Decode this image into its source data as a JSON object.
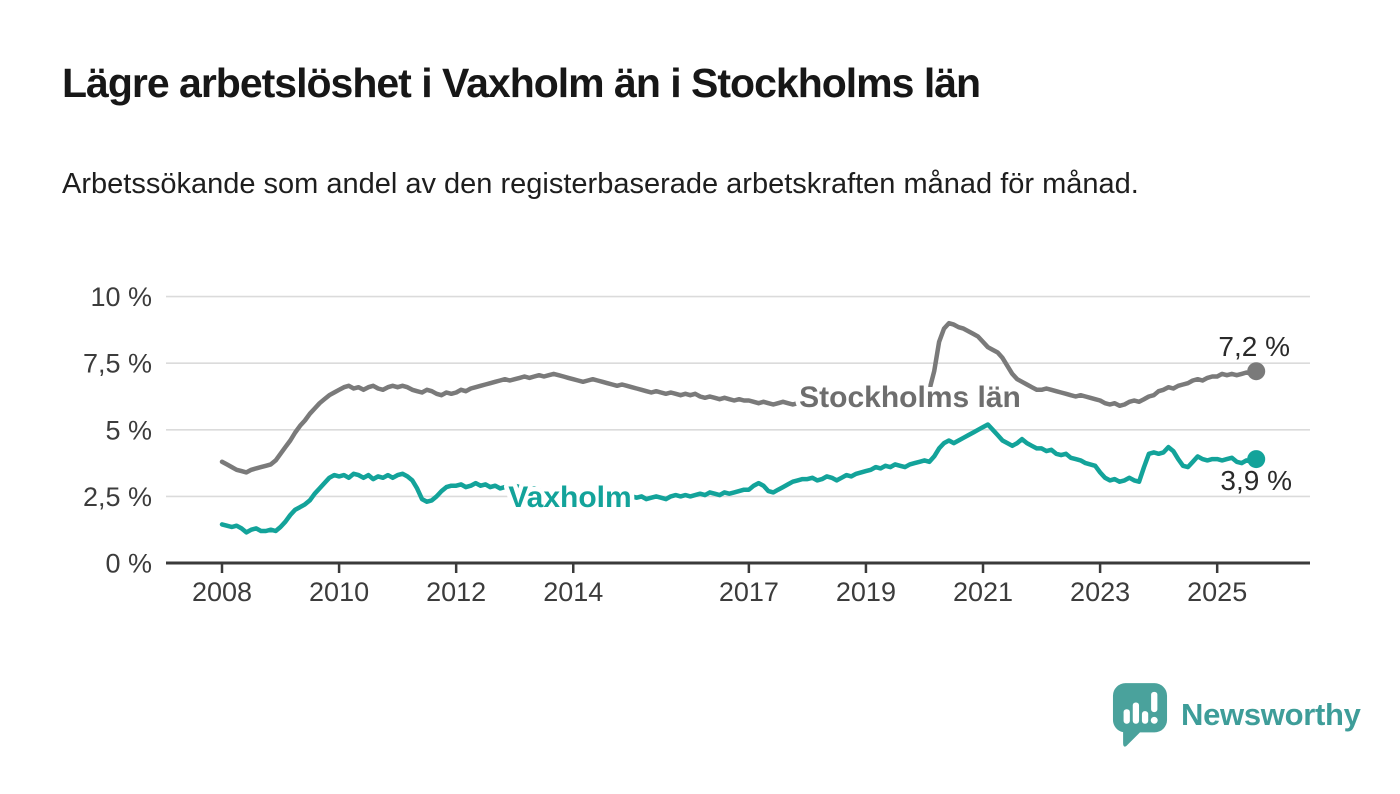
{
  "header": {
    "title": "Lägre arbetslöshet i Vaxholm än i Stockholms län",
    "subtitle": "Arbetssökande som andel av den registerbaserade arbetskraften månad för månad."
  },
  "colors": {
    "background": "#FFFFFF",
    "series_gray": "#7A7A7A",
    "series_gray_label": "#6E6E6E",
    "series_teal": "#13A39A",
    "axis_text": "#3C3C3C",
    "value_label_text": "#2A2A2A",
    "grid_line": "#DBDBDB",
    "axis_line": "#3A3A3A",
    "brand_teal": "#3E9D99",
    "logo_bubble_teal": "#4AA29C"
  },
  "chart_data": {
    "type": "line",
    "title": "Lägre arbetslöshet i Vaxholm än i Stockholms län",
    "subtitle": "Arbetssökande som andel av den registerbaserade arbetskraften månad för månad.",
    "unit": "%",
    "frequency": "monthly",
    "x_start": "2008-01",
    "x_end": "2025-09",
    "ylim": [
      0,
      10
    ],
    "grid": true,
    "legend_position": "inline-labels",
    "y_ticks": [
      {
        "value": 0,
        "label": "0 %"
      },
      {
        "value": 2.5,
        "label": "2,5 %"
      },
      {
        "value": 5,
        "label": "5 %"
      },
      {
        "value": 7.5,
        "label": "7,5 %"
      },
      {
        "value": 10,
        "label": "10 %"
      }
    ],
    "x_ticks": [
      {
        "year": 2008,
        "label": "2008"
      },
      {
        "year": 2010,
        "label": "2010"
      },
      {
        "year": 2012,
        "label": "2012"
      },
      {
        "year": 2014,
        "label": "2014"
      },
      {
        "year": 2017,
        "label": "2017"
      },
      {
        "year": 2019,
        "label": "2019"
      },
      {
        "year": 2021,
        "label": "2021"
      },
      {
        "year": 2023,
        "label": "2023"
      },
      {
        "year": 2025,
        "label": "2025"
      }
    ],
    "series": [
      {
        "name": "Stockholms län",
        "color": "#7A7A7A",
        "label_color": "#6E6E6E",
        "end_value": 7.2,
        "end_label": "7,2 %",
        "values": [
          3.8,
          3.7,
          3.6,
          3.5,
          3.45,
          3.4,
          3.5,
          3.55,
          3.6,
          3.65,
          3.7,
          3.85,
          4.1,
          4.35,
          4.6,
          4.9,
          5.15,
          5.35,
          5.6,
          5.8,
          6.0,
          6.15,
          6.3,
          6.4,
          6.5,
          6.6,
          6.65,
          6.55,
          6.6,
          6.5,
          6.6,
          6.65,
          6.55,
          6.5,
          6.6,
          6.65,
          6.6,
          6.65,
          6.6,
          6.5,
          6.45,
          6.4,
          6.5,
          6.45,
          6.35,
          6.3,
          6.4,
          6.35,
          6.4,
          6.5,
          6.45,
          6.55,
          6.6,
          6.65,
          6.7,
          6.75,
          6.8,
          6.85,
          6.9,
          6.85,
          6.9,
          6.95,
          7.0,
          6.95,
          7.0,
          7.05,
          7.0,
          7.05,
          7.1,
          7.05,
          7.0,
          6.95,
          6.9,
          6.85,
          6.8,
          6.85,
          6.9,
          6.85,
          6.8,
          6.75,
          6.7,
          6.65,
          6.7,
          6.65,
          6.6,
          6.55,
          6.5,
          6.45,
          6.4,
          6.45,
          6.4,
          6.35,
          6.4,
          6.35,
          6.3,
          6.35,
          6.3,
          6.35,
          6.25,
          6.2,
          6.25,
          6.2,
          6.15,
          6.2,
          6.15,
          6.1,
          6.15,
          6.1,
          6.1,
          6.05,
          6.0,
          6.05,
          6.0,
          5.95,
          6.0,
          6.05,
          6.0,
          5.95,
          6.0,
          6.05,
          6.0,
          5.95,
          6.0,
          6.05,
          6.0,
          5.95,
          6.0,
          6.05,
          6.0,
          5.95,
          6.0,
          6.0,
          5.95,
          5.9,
          5.95,
          6.0,
          5.95,
          6.0,
          6.05,
          6.0,
          6.05,
          6.1,
          6.15,
          6.2,
          6.3,
          6.5,
          7.2,
          8.3,
          8.8,
          9.0,
          8.95,
          8.85,
          8.8,
          8.7,
          8.6,
          8.5,
          8.3,
          8.1,
          8.0,
          7.9,
          7.7,
          7.4,
          7.1,
          6.9,
          6.8,
          6.7,
          6.6,
          6.5,
          6.5,
          6.55,
          6.5,
          6.45,
          6.4,
          6.35,
          6.3,
          6.25,
          6.3,
          6.25,
          6.2,
          6.15,
          6.1,
          6.0,
          5.95,
          6.0,
          5.9,
          5.95,
          6.05,
          6.1,
          6.05,
          6.15,
          6.25,
          6.3,
          6.45,
          6.5,
          6.6,
          6.55,
          6.65,
          6.7,
          6.75,
          6.85,
          6.9,
          6.85,
          6.95,
          7.0,
          7.0,
          7.1,
          7.05,
          7.1,
          7.05,
          7.1,
          7.15,
          7.1,
          7.2
        ]
      },
      {
        "name": "Vaxholm",
        "color": "#13A39A",
        "label_color": "#13A39A",
        "end_value": 3.9,
        "end_label": "3,9 %",
        "values": [
          1.45,
          1.4,
          1.35,
          1.4,
          1.3,
          1.15,
          1.25,
          1.3,
          1.2,
          1.2,
          1.25,
          1.2,
          1.35,
          1.55,
          1.8,
          2.0,
          2.1,
          2.2,
          2.35,
          2.6,
          2.8,
          3.0,
          3.2,
          3.3,
          3.25,
          3.3,
          3.2,
          3.35,
          3.3,
          3.2,
          3.3,
          3.15,
          3.25,
          3.2,
          3.3,
          3.2,
          3.3,
          3.35,
          3.25,
          3.1,
          2.8,
          2.4,
          2.3,
          2.35,
          2.5,
          2.7,
          2.85,
          2.9,
          2.9,
          2.95,
          2.85,
          2.9,
          3.0,
          2.9,
          2.95,
          2.85,
          2.9,
          2.8,
          2.85,
          2.9,
          2.9,
          2.85,
          2.8,
          2.75,
          2.8,
          2.7,
          2.75,
          2.65,
          2.7,
          2.6,
          2.65,
          2.6,
          2.6,
          2.55,
          2.5,
          2.55,
          2.45,
          2.5,
          2.4,
          2.45,
          2.5,
          2.45,
          2.4,
          2.45,
          2.5,
          2.45,
          2.5,
          2.4,
          2.45,
          2.5,
          2.45,
          2.4,
          2.5,
          2.55,
          2.5,
          2.55,
          2.5,
          2.55,
          2.6,
          2.55,
          2.65,
          2.6,
          2.55,
          2.65,
          2.6,
          2.65,
          2.7,
          2.75,
          2.75,
          2.9,
          3.0,
          2.9,
          2.7,
          2.65,
          2.75,
          2.85,
          2.95,
          3.05,
          3.1,
          3.15,
          3.15,
          3.2,
          3.1,
          3.15,
          3.25,
          3.2,
          3.1,
          3.2,
          3.3,
          3.25,
          3.35,
          3.4,
          3.45,
          3.5,
          3.6,
          3.55,
          3.65,
          3.6,
          3.7,
          3.65,
          3.6,
          3.7,
          3.75,
          3.8,
          3.85,
          3.8,
          4.0,
          4.3,
          4.5,
          4.6,
          4.5,
          4.6,
          4.7,
          4.8,
          4.9,
          5.0,
          5.1,
          5.2,
          5.0,
          4.8,
          4.6,
          4.5,
          4.4,
          4.5,
          4.65,
          4.5,
          4.4,
          4.3,
          4.3,
          4.2,
          4.25,
          4.1,
          4.05,
          4.1,
          3.95,
          3.9,
          3.85,
          3.75,
          3.7,
          3.65,
          3.4,
          3.2,
          3.1,
          3.15,
          3.05,
          3.1,
          3.2,
          3.1,
          3.05,
          3.6,
          4.1,
          4.15,
          4.1,
          4.15,
          4.35,
          4.2,
          3.9,
          3.65,
          3.6,
          3.8,
          4.0,
          3.9,
          3.85,
          3.9,
          3.9,
          3.85,
          3.9,
          3.95,
          3.8,
          3.75,
          3.85,
          3.8,
          3.9
        ]
      }
    ]
  },
  "footer": {
    "brand": "Newsworthy",
    "logo_icon": "bar-chart-speech-bubble-icon"
  }
}
